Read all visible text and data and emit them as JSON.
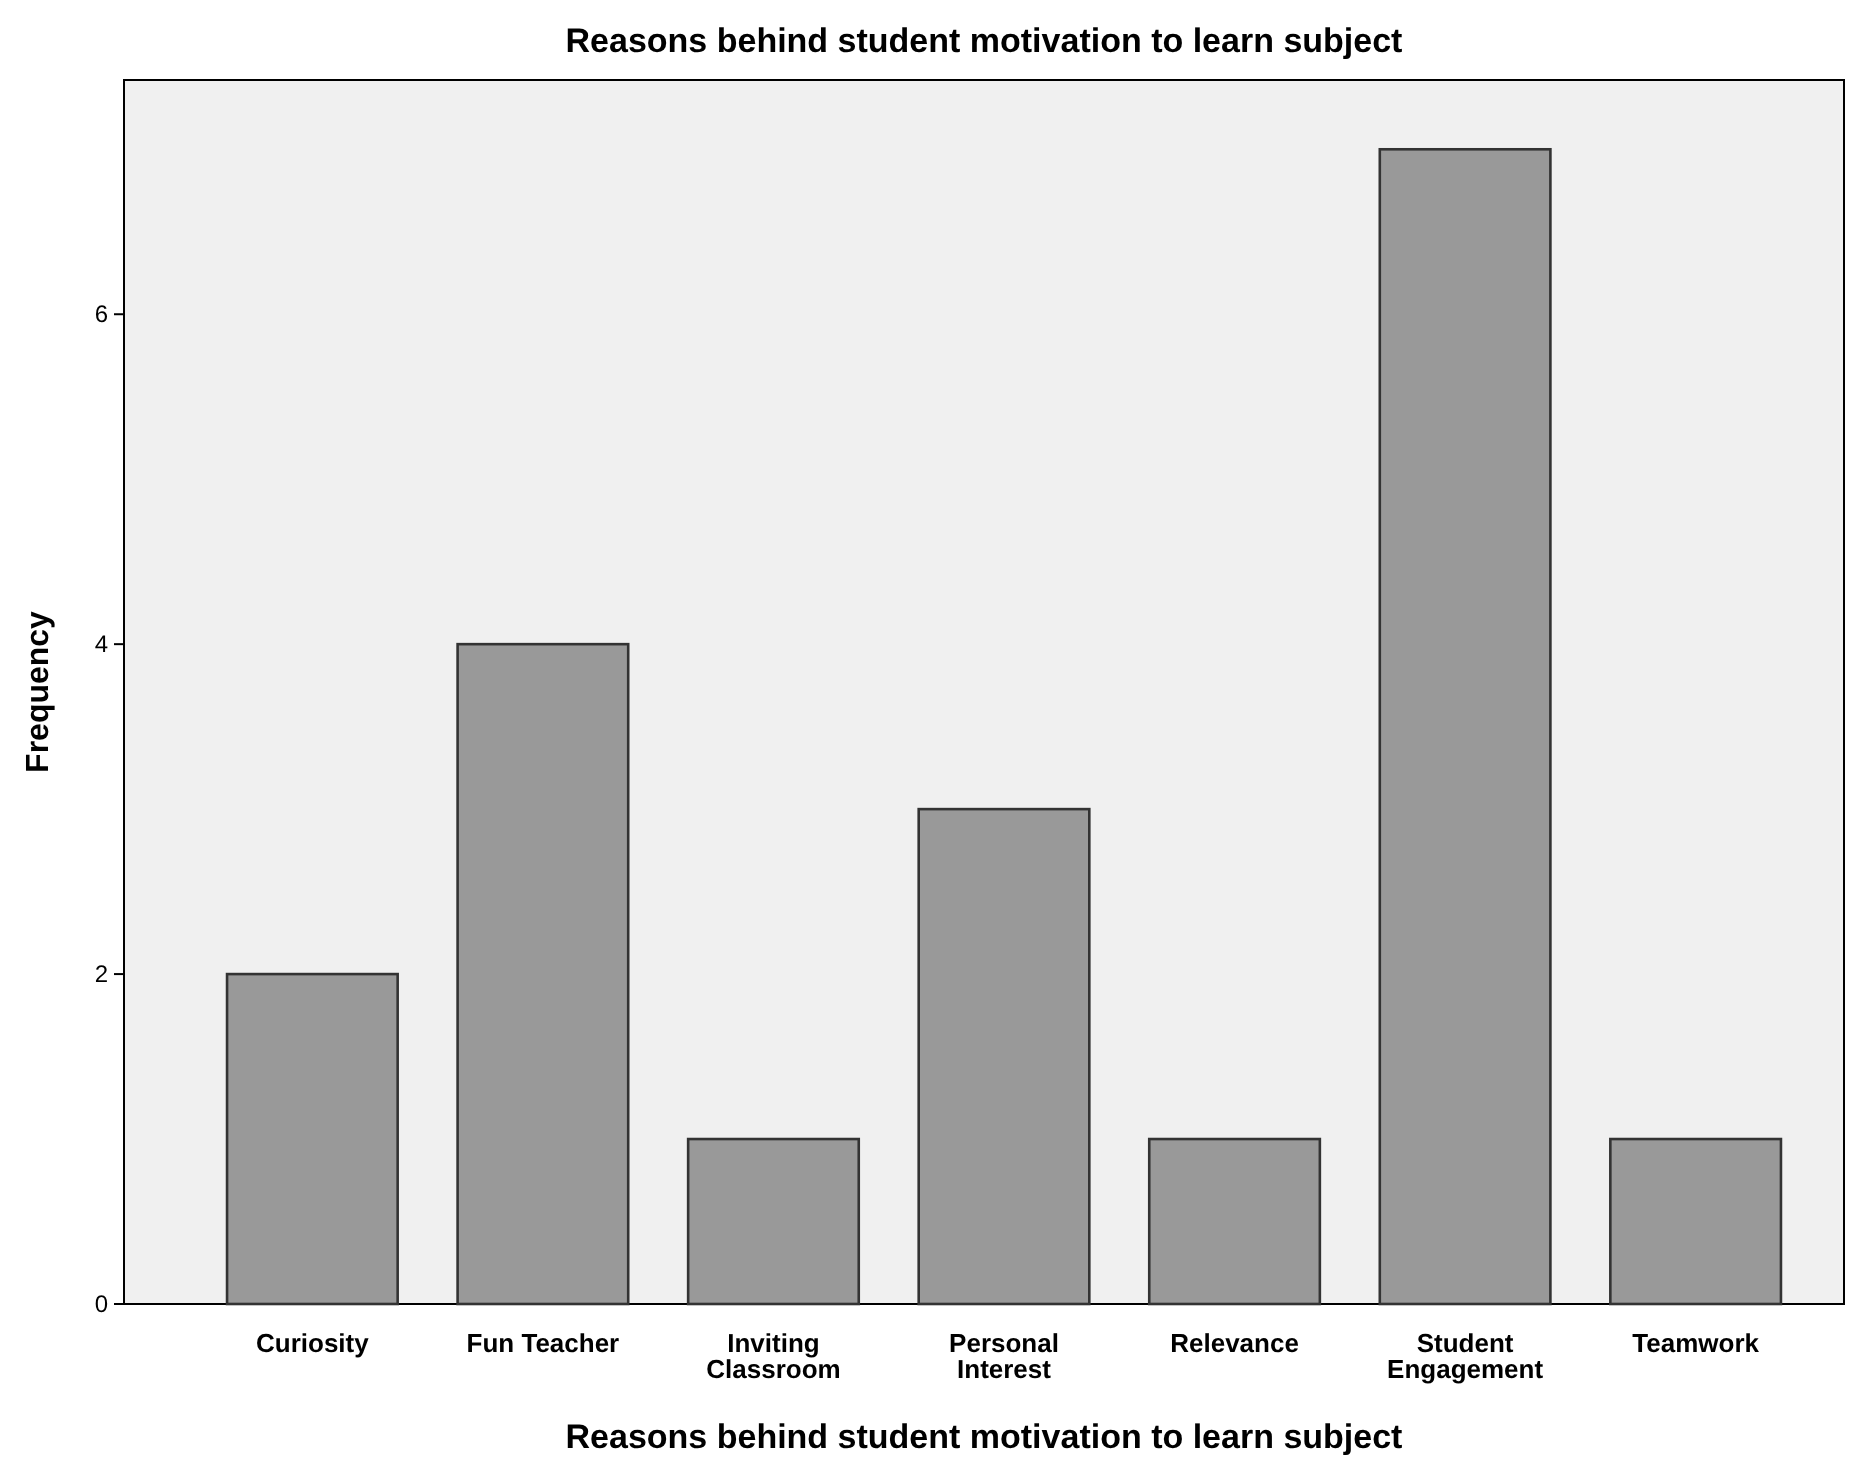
{
  "chart_data": {
    "type": "bar",
    "title": "Reasons behind student motivation to learn subject",
    "xlabel": "Reasons behind student motivation to learn subject",
    "ylabel": "Frequency",
    "categories": [
      "Curiosity",
      "Fun Teacher",
      "Inviting Classroom",
      "Personal Interest",
      "Relevance",
      "Student Engagement",
      "Teamwork"
    ],
    "values": [
      2,
      4,
      1,
      3,
      1,
      7,
      1
    ],
    "color": "#999999",
    "ylim": [
      0,
      7.42
    ],
    "yticks": [
      0,
      2,
      4,
      6
    ],
    "grid": false
  }
}
